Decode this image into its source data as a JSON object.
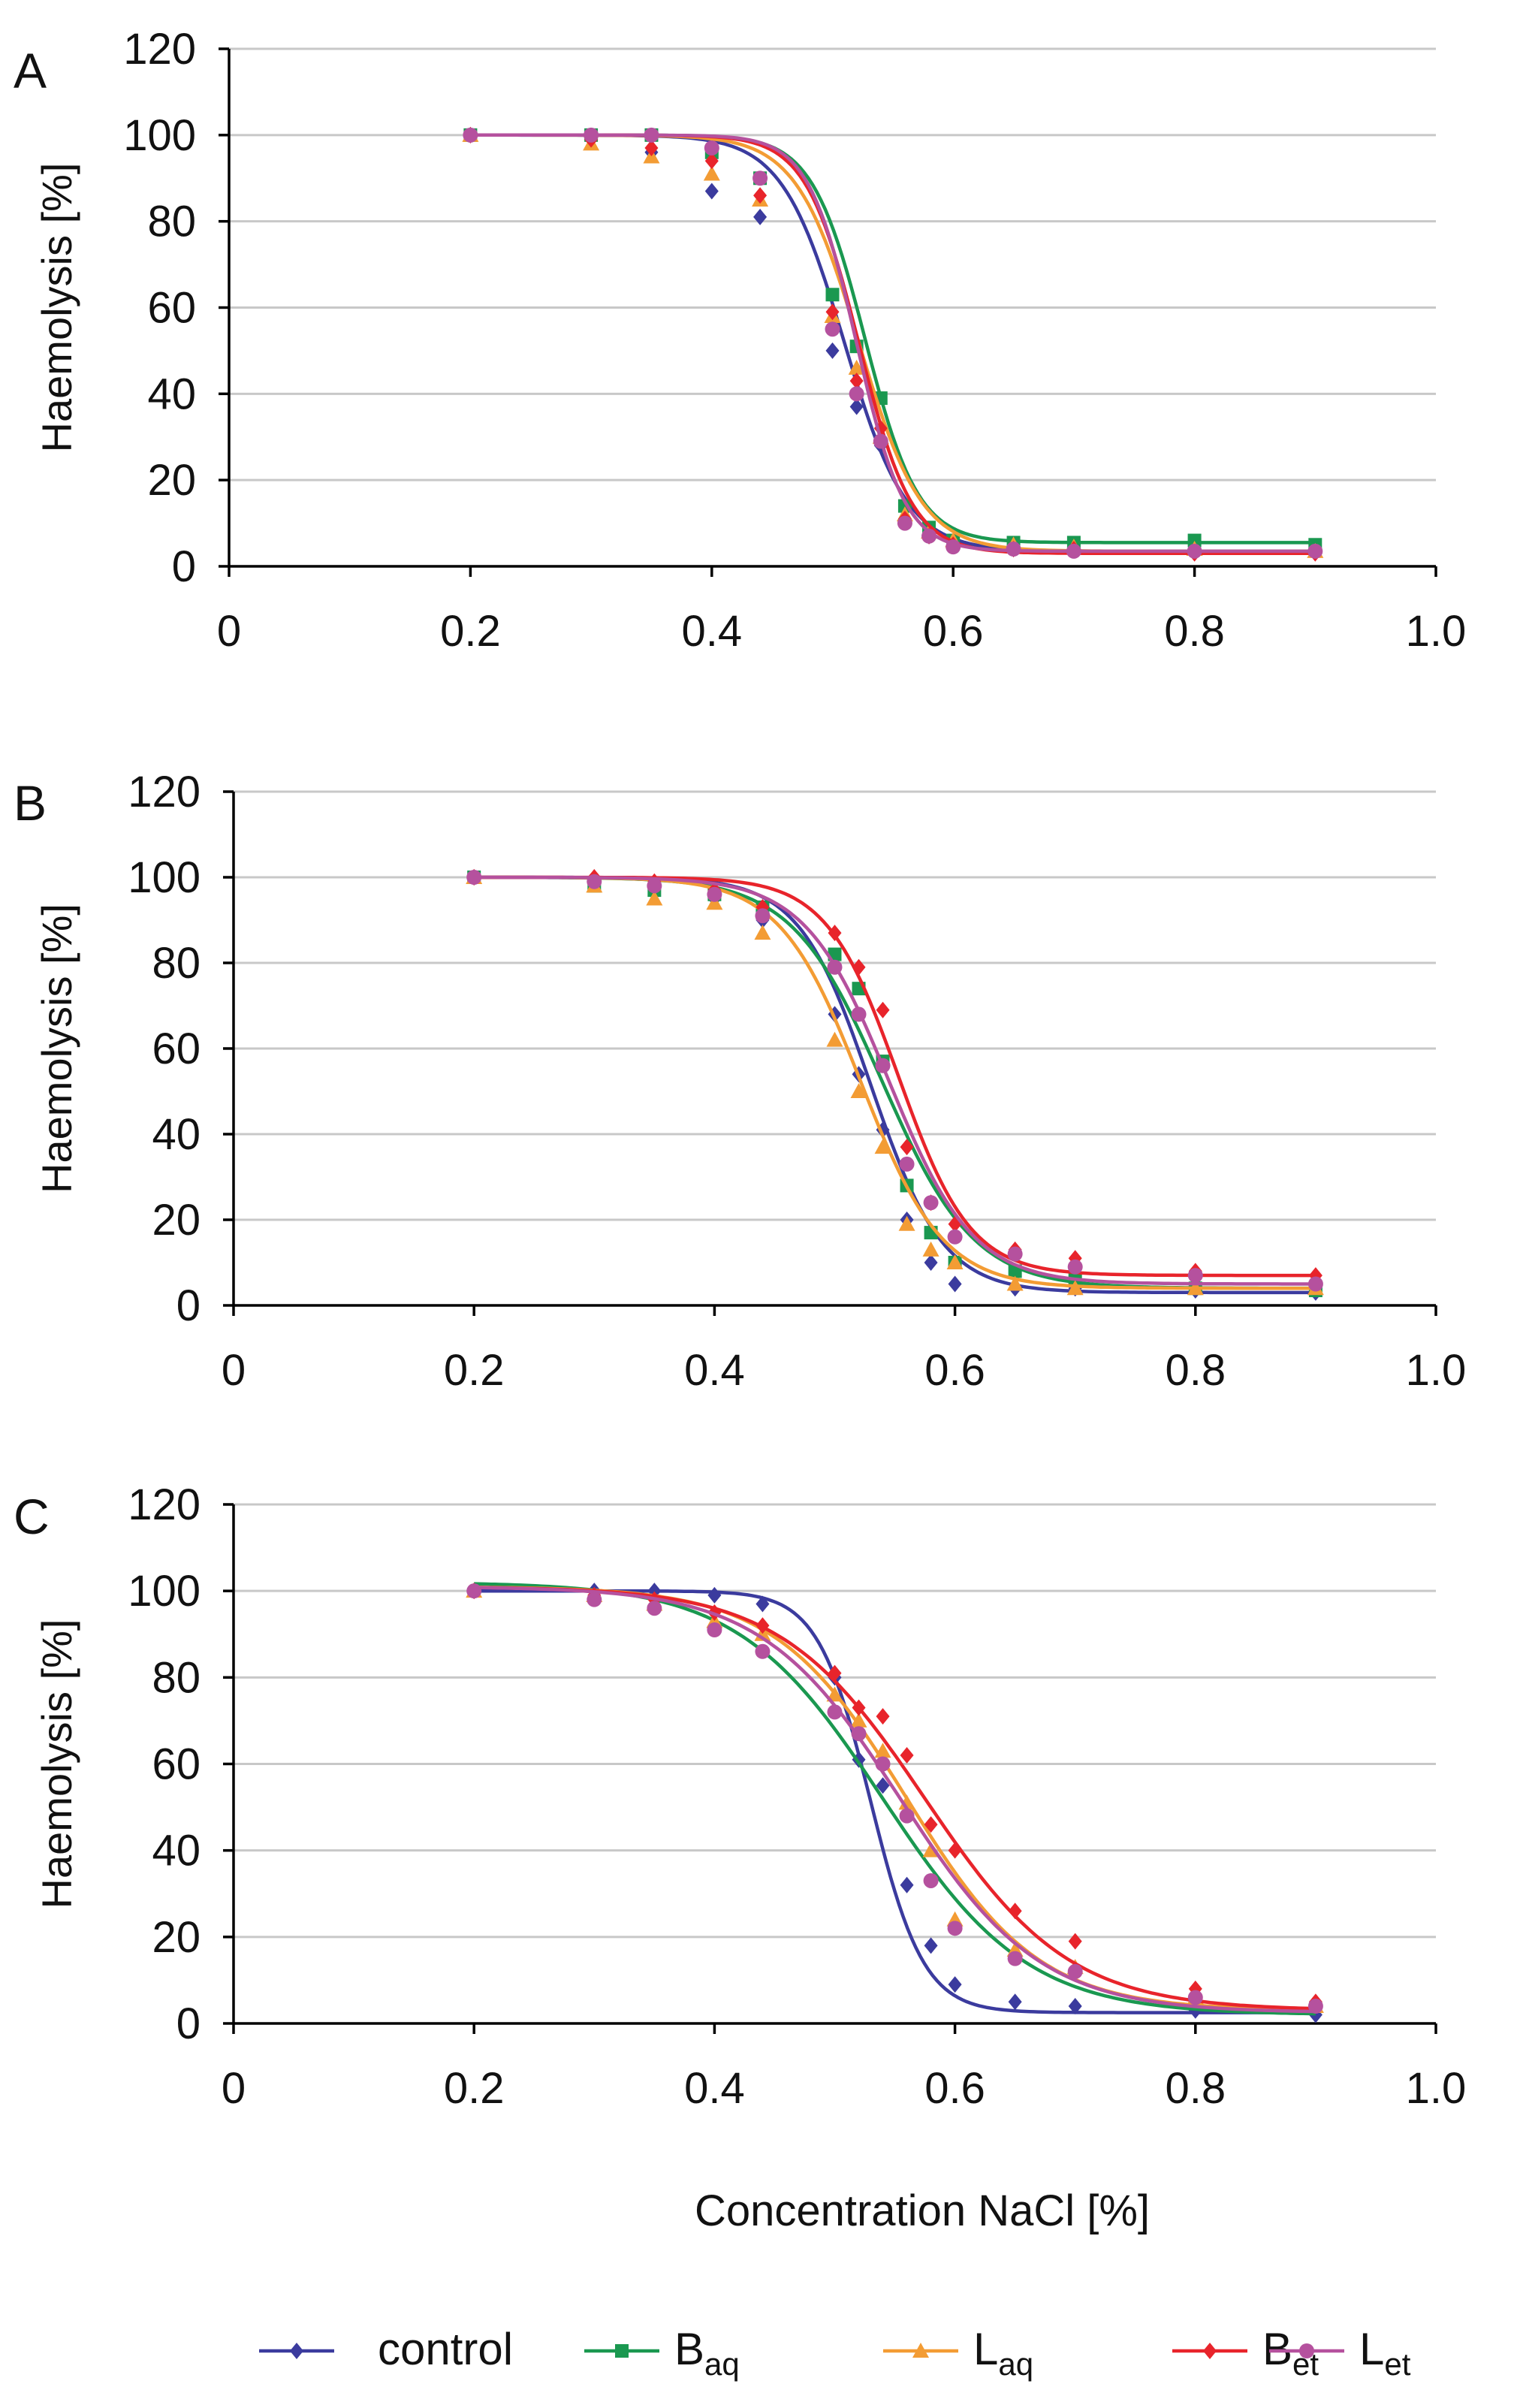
{
  "legend": [
    {
      "label": "control",
      "sub": "",
      "color": "#3b3b9e",
      "marker": "diamond"
    },
    {
      "label": "B",
      "sub": "aq",
      "color": "#1a9850",
      "marker": "square"
    },
    {
      "label": "L",
      "sub": "aq",
      "color": "#f39c34",
      "marker": "triangle"
    },
    {
      "label": "B",
      "sub": "et",
      "color": "#e8242b",
      "marker": "diamond"
    },
    {
      "label": "L",
      "sub": "et",
      "color": "#b5519e",
      "marker": "circle"
    }
  ],
  "chart_data": [
    {
      "type": "line",
      "panel": "A",
      "ylabel": "Haemolysis [%]",
      "xlabel": "",
      "xlim": [
        0,
        1.0
      ],
      "ylim": [
        0,
        120
      ],
      "xticks": [
        "0",
        "0.2",
        "0.4",
        "0.6",
        "0.8",
        "1.0"
      ],
      "yticks": [
        "0",
        "20",
        "40",
        "60",
        "80",
        "100",
        "120"
      ],
      "grid": "horizontal",
      "series": [
        {
          "name": "control",
          "color": "#3b3b9e",
          "marker": "diamond",
          "fit": {
            "c": 0.51,
            "s": 0.026,
            "top": 100,
            "bottom": 3.5
          },
          "x": [
            0.2,
            0.3,
            0.35,
            0.4,
            0.44,
            0.5,
            0.52,
            0.54,
            0.56,
            0.58,
            0.6,
            0.65,
            0.7,
            0.8,
            0.9
          ],
          "y": [
            100,
            99,
            96,
            87,
            81,
            50,
            37,
            28,
            11,
            7,
            5,
            4,
            4,
            3.5,
            3.5
          ]
        },
        {
          "name": "Baq",
          "color": "#1a9850",
          "marker": "square",
          "fit": {
            "c": 0.527,
            "s": 0.022,
            "top": 100,
            "bottom": 5.5
          },
          "x": [
            0.2,
            0.3,
            0.35,
            0.4,
            0.44,
            0.5,
            0.52,
            0.54,
            0.56,
            0.58,
            0.6,
            0.65,
            0.7,
            0.8,
            0.9
          ],
          "y": [
            100,
            100,
            100,
            96,
            90,
            63,
            51,
            39,
            14,
            9,
            6,
            5.5,
            5.5,
            6,
            5
          ]
        },
        {
          "name": "Laq",
          "color": "#f39c34",
          "marker": "triangle",
          "fit": {
            "c": 0.522,
            "s": 0.026,
            "top": 100,
            "bottom": 3.5
          },
          "x": [
            0.2,
            0.3,
            0.35,
            0.4,
            0.44,
            0.5,
            0.52,
            0.54,
            0.56,
            0.58,
            0.6,
            0.65,
            0.7,
            0.8,
            0.9
          ],
          "y": [
            100,
            98,
            95,
            91,
            85,
            58,
            46,
            30,
            12,
            8,
            6,
            5,
            4.5,
            4,
            3.5
          ]
        },
        {
          "name": "Bet",
          "color": "#e8242b",
          "marker": "diamond",
          "fit": {
            "c": 0.522,
            "s": 0.022,
            "top": 100,
            "bottom": 3
          },
          "x": [
            0.2,
            0.3,
            0.35,
            0.4,
            0.44,
            0.5,
            0.52,
            0.54,
            0.56,
            0.58,
            0.6,
            0.65,
            0.7,
            0.8,
            0.9
          ],
          "y": [
            100,
            99,
            97,
            94,
            86,
            59,
            43,
            32,
            11,
            7,
            5,
            4,
            4,
            3,
            3
          ]
        },
        {
          "name": "Let",
          "color": "#b5519e",
          "marker": "circle",
          "fit": {
            "c": 0.52,
            "s": 0.02,
            "top": 100,
            "bottom": 3.5
          },
          "x": [
            0.2,
            0.3,
            0.35,
            0.4,
            0.44,
            0.5,
            0.52,
            0.54,
            0.56,
            0.58,
            0.6,
            0.65,
            0.7,
            0.8,
            0.9
          ],
          "y": [
            100,
            100,
            100,
            97,
            90,
            55,
            40,
            29,
            10,
            7,
            4.5,
            4,
            3.5,
            3.5,
            3.5
          ]
        }
      ]
    },
    {
      "type": "line",
      "panel": "B",
      "ylabel": "Haemolysis [%]",
      "xlabel": "",
      "xlim": [
        0,
        1.0
      ],
      "ylim": [
        0,
        120
      ],
      "xticks": [
        "0",
        "0.2",
        "0.4",
        "0.6",
        "0.8",
        "1.0"
      ],
      "yticks": [
        "0",
        "20",
        "40",
        "60",
        "80",
        "100",
        "120"
      ],
      "grid": "horizontal",
      "series": [
        {
          "name": "control",
          "color": "#3b3b9e",
          "marker": "diamond",
          "fit": {
            "c": 0.53,
            "s": 0.03,
            "top": 100,
            "bottom": 3
          },
          "x": [
            0.2,
            0.3,
            0.35,
            0.4,
            0.44,
            0.5,
            0.52,
            0.54,
            0.56,
            0.58,
            0.6,
            0.65,
            0.7,
            0.8,
            0.9
          ],
          "y": [
            100,
            99,
            98,
            95,
            90,
            68,
            54,
            41,
            20,
            10,
            5,
            4,
            4,
            3.5,
            3
          ]
        },
        {
          "name": "Baq",
          "color": "#1a9850",
          "marker": "square",
          "fit": {
            "c": 0.54,
            "s": 0.038,
            "top": 100,
            "bottom": 4
          },
          "x": [
            0.2,
            0.3,
            0.35,
            0.4,
            0.44,
            0.5,
            0.52,
            0.54,
            0.56,
            0.58,
            0.6,
            0.65,
            0.7,
            0.8,
            0.9
          ],
          "y": [
            100,
            98,
            97,
            96,
            93,
            82,
            74,
            57,
            28,
            17,
            10,
            8,
            6,
            4,
            3.5
          ]
        },
        {
          "name": "Laq",
          "color": "#f39c34",
          "marker": "triangle",
          "fit": {
            "c": 0.522,
            "s": 0.034,
            "top": 100,
            "bottom": 4
          },
          "x": [
            0.2,
            0.3,
            0.35,
            0.4,
            0.44,
            0.5,
            0.52,
            0.54,
            0.56,
            0.58,
            0.6,
            0.65,
            0.7,
            0.8,
            0.9
          ],
          "y": [
            100,
            98,
            95,
            94,
            87,
            62,
            50,
            37,
            19,
            13,
            10,
            5,
            4,
            4,
            4
          ]
        },
        {
          "name": "Bet",
          "color": "#e8242b",
          "marker": "diamond",
          "fit": {
            "c": 0.553,
            "s": 0.03,
            "top": 100,
            "bottom": 7
          },
          "x": [
            0.2,
            0.3,
            0.35,
            0.4,
            0.44,
            0.5,
            0.52,
            0.54,
            0.56,
            0.58,
            0.6,
            0.65,
            0.7,
            0.8,
            0.9
          ],
          "y": [
            100,
            100,
            99,
            97,
            93,
            87,
            79,
            69,
            37,
            24,
            19,
            13,
            11,
            8,
            7
          ]
        },
        {
          "name": "Let",
          "color": "#b5519e",
          "marker": "circle",
          "fit": {
            "c": 0.545,
            "s": 0.035,
            "top": 100,
            "bottom": 5
          },
          "x": [
            0.2,
            0.3,
            0.35,
            0.4,
            0.44,
            0.5,
            0.52,
            0.54,
            0.56,
            0.58,
            0.6,
            0.65,
            0.7,
            0.8,
            0.9
          ],
          "y": [
            100,
            99,
            98,
            96,
            91,
            79,
            68,
            56,
            33,
            24,
            16,
            12,
            9,
            7,
            5
          ]
        }
      ]
    },
    {
      "type": "line",
      "panel": "C",
      "ylabel": "Haemolysis [%]",
      "xlabel": "Concentration NaCl [%]",
      "xlim": [
        0,
        1.0
      ],
      "ylim": [
        0,
        120
      ],
      "xticks": [
        "0",
        "0.2",
        "0.4",
        "0.6",
        "0.8",
        "1.0"
      ],
      "yticks": [
        "0",
        "20",
        "40",
        "60",
        "80",
        "100",
        "120"
      ],
      "grid": "horizontal",
      "series": [
        {
          "name": "control",
          "color": "#3b3b9e",
          "marker": "diamond",
          "fit": {
            "c": 0.53,
            "s": 0.022,
            "top": 100,
            "bottom": 2.5
          },
          "x": [
            0.2,
            0.3,
            0.35,
            0.4,
            0.44,
            0.5,
            0.52,
            0.54,
            0.56,
            0.58,
            0.6,
            0.65,
            0.7,
            0.8,
            0.9
          ],
          "y": [
            100,
            100,
            100,
            99,
            97,
            80,
            61,
            55,
            32,
            18,
            9,
            5,
            4,
            3,
            2
          ]
        },
        {
          "name": "Baq",
          "color": "#1a9850",
          "marker": "square",
          "fit": {
            "c": 0.54,
            "s": 0.06,
            "top": 102,
            "bottom": 2
          }
        },
        {
          "name": "Laq",
          "color": "#f39c34",
          "marker": "triangle",
          "fit": {
            "c": 0.56,
            "s": 0.055,
            "top": 101,
            "bottom": 3
          },
          "x": [
            0.2,
            0.3,
            0.35,
            0.4,
            0.44,
            0.5,
            0.52,
            0.54,
            0.56,
            0.58,
            0.6,
            0.65,
            0.7,
            0.8,
            0.9
          ],
          "y": [
            100,
            99,
            97,
            93,
            90,
            76,
            70,
            63,
            51,
            40,
            24,
            17,
            13,
            6,
            4
          ]
        },
        {
          "name": "Bet",
          "color": "#e8242b",
          "marker": "diamond",
          "fit": {
            "c": 0.575,
            "s": 0.06,
            "top": 101,
            "bottom": 3
          },
          "x": [
            0.2,
            0.3,
            0.35,
            0.4,
            0.44,
            0.5,
            0.52,
            0.54,
            0.56,
            0.58,
            0.6,
            0.65,
            0.7,
            0.8,
            0.9
          ],
          "y": [
            100,
            99,
            98,
            95,
            92,
            81,
            73,
            71,
            62,
            46,
            40,
            26,
            19,
            8,
            5
          ]
        },
        {
          "name": "Let",
          "color": "#b5519e",
          "marker": "circle",
          "fit": {
            "c": 0.555,
            "s": 0.058,
            "top": 101,
            "bottom": 2.5
          },
          "x": [
            0.2,
            0.3,
            0.35,
            0.4,
            0.44,
            0.5,
            0.52,
            0.54,
            0.56,
            0.58,
            0.6,
            0.65,
            0.7,
            0.8,
            0.9
          ],
          "y": [
            100,
            98,
            96,
            91,
            86,
            72,
            67,
            60,
            48,
            33,
            22,
            15,
            12,
            6,
            4
          ]
        }
      ]
    }
  ]
}
